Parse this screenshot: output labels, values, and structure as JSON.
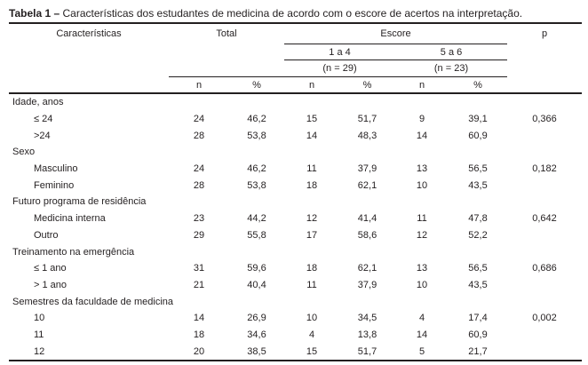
{
  "title": {
    "prefix": "Tabela 1 –",
    "caption": "Características dos estudantes de medicina de acordo com o escore de acertos na interpretação."
  },
  "table": {
    "headers": {
      "characteristics": "Características",
      "total": "Total",
      "escore": "Escore",
      "group1": "1 a 4",
      "group2": "5 a 6",
      "group1_n": "(n = 29)",
      "group2_n": "(n = 23)",
      "n": "n",
      "pct": "%",
      "p": "p"
    },
    "sections": [
      {
        "label": "Idade, anos",
        "rows": [
          {
            "label": "≤ 24",
            "values": [
              "24",
              "46,2",
              "15",
              "51,7",
              "9",
              "39,1"
            ],
            "p": "0,366"
          },
          {
            "label": ">24",
            "values": [
              "28",
              "53,8",
              "14",
              "48,3",
              "14",
              "60,9"
            ],
            "p": ""
          }
        ]
      },
      {
        "label": "Sexo",
        "rows": [
          {
            "label": "Masculino",
            "values": [
              "24",
              "46,2",
              "11",
              "37,9",
              "13",
              "56,5"
            ],
            "p": "0,182"
          },
          {
            "label": "Feminino",
            "values": [
              "28",
              "53,8",
              "18",
              "62,1",
              "10",
              "43,5"
            ],
            "p": ""
          }
        ]
      },
      {
        "label": "Futuro programa de residência",
        "rows": [
          {
            "label": "Medicina interna",
            "values": [
              "23",
              "44,2",
              "12",
              "41,4",
              "11",
              "47,8"
            ],
            "p": "0,642"
          },
          {
            "label": "Outro",
            "values": [
              "29",
              "55,8",
              "17",
              "58,6",
              "12",
              "52,2"
            ],
            "p": ""
          }
        ]
      },
      {
        "label": "Treinamento na emergência",
        "rows": [
          {
            "label": "≤ 1 ano",
            "values": [
              "31",
              "59,6",
              "18",
              "62,1",
              "13",
              "56,5"
            ],
            "p": "0,686"
          },
          {
            "label": "> 1 ano",
            "values": [
              "21",
              "40,4",
              "11",
              "37,9",
              "10",
              "43,5"
            ],
            "p": ""
          }
        ]
      },
      {
        "label": "Semestres da faculdade de medicina",
        "rows": [
          {
            "label": "10",
            "values": [
              "14",
              "26,9",
              "10",
              "34,5",
              "4",
              "17,4"
            ],
            "p": "0,002"
          },
          {
            "label": "11",
            "values": [
              "18",
              "34,6",
              "4",
              "13,8",
              "14",
              "60,9"
            ],
            "p": ""
          },
          {
            "label": "12",
            "values": [
              "20",
              "38,5",
              "15",
              "51,7",
              "5",
              "21,7"
            ],
            "p": ""
          }
        ]
      }
    ]
  },
  "colors": {
    "text": "#231f20",
    "rule": "#231f20",
    "background": "#ffffff"
  }
}
